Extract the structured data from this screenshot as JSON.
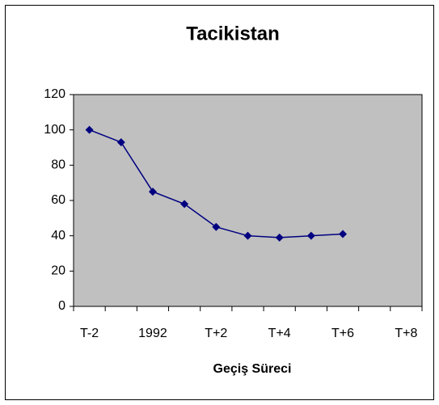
{
  "chart_data": {
    "type": "line",
    "title": "Tacikistan",
    "x_label": "Geçiş Süreci",
    "categories": [
      "T-2",
      null,
      "1992",
      null,
      "T+2",
      null,
      "T+4",
      null,
      "T+6",
      null,
      "T+8"
    ],
    "series": [
      {
        "name": "Tacikistan",
        "color": "#000080",
        "values": [
          100,
          93,
          65,
          58,
          45,
          40,
          39,
          40,
          41,
          null,
          null
        ]
      }
    ],
    "ylim": [
      0,
      120
    ],
    "yticks": [
      0,
      20,
      40,
      60,
      80,
      100,
      120
    ],
    "plot_background": "#c0c0c0"
  }
}
